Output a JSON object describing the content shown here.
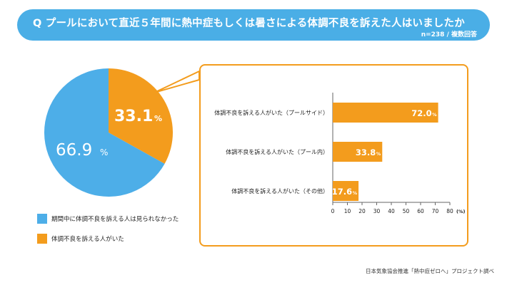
{
  "header": {
    "title": "Q プールにおいて直近５年間に熱中症もしくは暑さによる体調不良を訴えた人はいましたか",
    "subtitle": "n=238 / 複数回答"
  },
  "colors": {
    "blue": "#4daee8",
    "orange": "#f39c1d",
    "white": "#ffffff",
    "axis": "#666666",
    "text": "#222222"
  },
  "chart_data": [
    {
      "type": "pie",
      "slices": [
        {
          "label": "期間中に体調不良を訴える人は見られなかった",
          "value": 66.9,
          "display": "66.9",
          "unit": "%"
        },
        {
          "label": "体調不良を訴える人がいた",
          "value": 33.1,
          "display": "33.1",
          "unit": "%"
        }
      ],
      "legend_position": "bottom-left"
    },
    {
      "type": "bar",
      "orientation": "horizontal",
      "categories": [
        "体調不良を訴える人がいた（プールサイド）",
        "体調不良を訴える人がいた（プール内）",
        "体調不良を訴える人がいた（その他）"
      ],
      "values": [
        72.0,
        33.8,
        17.6
      ],
      "value_labels": [
        "72.0",
        "33.8",
        "17.6"
      ],
      "value_unit": "%",
      "xlim": [
        0,
        80
      ],
      "xticks": [
        0,
        10,
        20,
        30,
        40,
        50,
        60,
        70,
        80
      ],
      "xtick_labels": [
        "0",
        "10",
        "20",
        "30",
        "40",
        "50",
        "60",
        "70",
        "80"
      ],
      "x_unit_label": "(%)",
      "grid": false
    }
  ],
  "source": "日本気象協会推進「熱中症ゼロへ」プロジェクト調べ"
}
